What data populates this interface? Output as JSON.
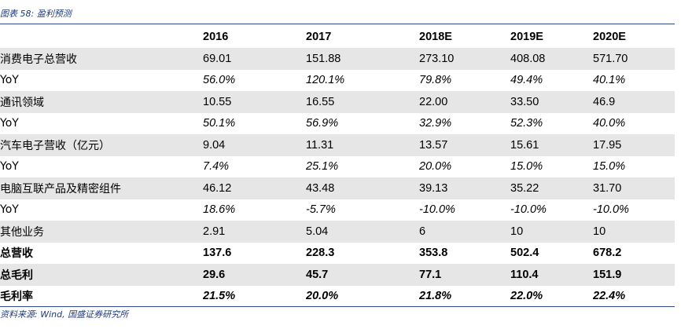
{
  "caption": "图表 58:  盈利预测",
  "source": "资料来源:  Wind,  国盛证券研究所",
  "table": {
    "headers": [
      "",
      "2016",
      "2017",
      "2018E",
      "2019E",
      "2020E"
    ],
    "rows": [
      {
        "label": "消费电子总营收",
        "values": [
          "69.01",
          "151.88",
          "273.10",
          "408.08",
          "571.70"
        ],
        "style": "normal",
        "shaded": true
      },
      {
        "label": "YoY",
        "values": [
          "56.0%",
          "120.1%",
          "79.8%",
          "49.4%",
          "40.1%"
        ],
        "style": "italic",
        "shaded": false
      },
      {
        "label": "通讯领域",
        "values": [
          "10.55",
          "16.55",
          "22.00",
          "33.50",
          "46.9"
        ],
        "style": "normal",
        "shaded": true
      },
      {
        "label": "YoY",
        "values": [
          "50.1%",
          "56.9%",
          "32.9%",
          "52.3%",
          "40.0%"
        ],
        "style": "italic",
        "shaded": false
      },
      {
        "label": "汽车电子营收（亿元）",
        "values": [
          "9.04",
          "11.31",
          "13.57",
          "15.61",
          "17.95"
        ],
        "style": "normal",
        "shaded": true
      },
      {
        "label": "YoY",
        "values": [
          "7.4%",
          "25.1%",
          "20.0%",
          "15.0%",
          "15.0%"
        ],
        "style": "italic",
        "shaded": false
      },
      {
        "label": "电脑互联产品及精密组件",
        "values": [
          "46.12",
          "43.48",
          "39.13",
          "35.22",
          "31.70"
        ],
        "style": "normal",
        "shaded": true
      },
      {
        "label": "YoY",
        "values": [
          "18.6%",
          "-5.7%",
          "-10.0%",
          "-10.0%",
          "-10.0%"
        ],
        "style": "italic",
        "shaded": false
      },
      {
        "label": "其他业务",
        "values": [
          "2.91",
          "5.04",
          "6",
          "10",
          "10"
        ],
        "style": "normal",
        "shaded": true
      },
      {
        "label": "总营收",
        "values": [
          "137.6",
          "228.3",
          "353.8",
          "502.4",
          "678.2"
        ],
        "style": "bold",
        "shaded": false
      },
      {
        "label": "总毛利",
        "values": [
          "29.6",
          "45.7",
          "77.1",
          "110.4",
          "151.9"
        ],
        "style": "bold",
        "shaded": true
      },
      {
        "label": "毛利率",
        "values": [
          "21.5%",
          "20.0%",
          "21.8%",
          "22.0%",
          "22.4%"
        ],
        "style": "bold-italic",
        "shaded": false
      }
    ]
  },
  "colors": {
    "rule": "#2E4A8C",
    "caption": "#1F3A7A",
    "shade": "#E6E6E6"
  }
}
